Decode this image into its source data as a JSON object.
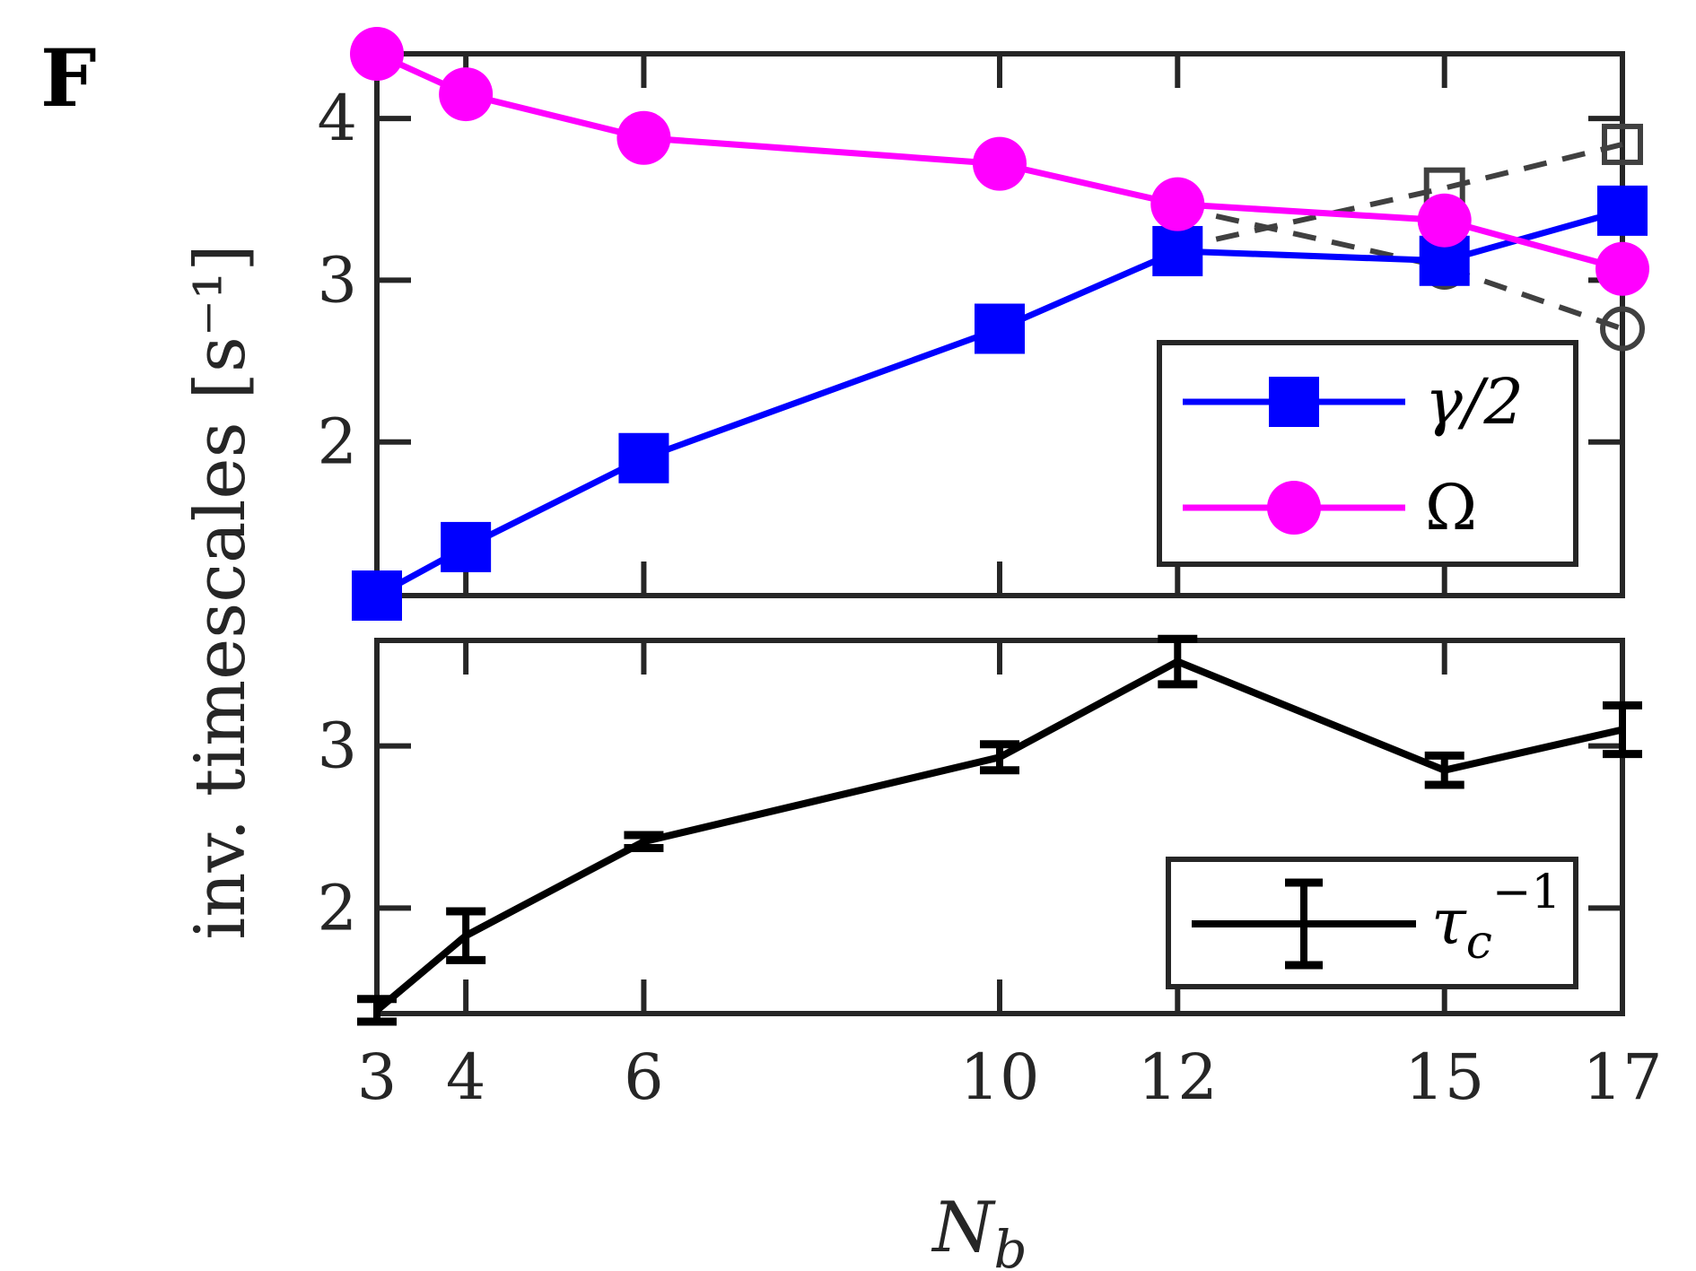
{
  "panel_label": "F",
  "ylabel": "inv.  timescales [s⁻¹]",
  "xlabel": {
    "main": "N",
    "sub": "b"
  },
  "colors": {
    "gamma": "#0000ff",
    "omega": "#ff00ff",
    "tau": "#000000",
    "alt": "#404040",
    "axis": "#262626"
  },
  "chart_data": [
    {
      "type": "line",
      "title": "",
      "xlabel": "N_b",
      "ylabel": "inv. timescales [s^-1]",
      "x": [
        3,
        4,
        6,
        10,
        12,
        15,
        17
      ],
      "xlim": [
        3,
        17
      ],
      "xticks": [
        3,
        4,
        6,
        10,
        12,
        15,
        17
      ],
      "ylim": [
        1.05,
        4.4
      ],
      "yticks": [
        2,
        3,
        4
      ],
      "grid": false,
      "legend_position": "right",
      "series": [
        {
          "name": "γ/2",
          "marker": "filled-square",
          "color": "#0000ff",
          "x": [
            3,
            4,
            6,
            10,
            12,
            15,
            17
          ],
          "values": [
            1.05,
            1.35,
            1.9,
            2.7,
            3.18,
            3.12,
            3.43
          ]
        },
        {
          "name": "Ω",
          "marker": "filled-circle",
          "color": "#ff00ff",
          "x": [
            3,
            4,
            6,
            10,
            12,
            15,
            17
          ],
          "values": [
            4.4,
            4.15,
            3.88,
            3.72,
            3.47,
            3.37,
            3.07
          ]
        },
        {
          "name": "",
          "marker": "open-square",
          "style": "dashed",
          "color": "#404040",
          "x": [
            12,
            15,
            17
          ],
          "values": [
            3.2,
            3.57,
            3.84
          ]
        },
        {
          "name": "",
          "marker": "open-circle",
          "style": "dashed",
          "color": "#404040",
          "x": [
            12,
            15,
            17
          ],
          "values": [
            3.45,
            3.08,
            2.7
          ]
        }
      ],
      "legend": [
        {
          "label_main": "γ/2",
          "series": 0
        },
        {
          "label_main": "Ω",
          "series": 1
        }
      ]
    },
    {
      "type": "line",
      "title": "",
      "xlabel": "N_b",
      "ylabel": "inv. timescales [s^-1]",
      "x": [
        3,
        4,
        6,
        10,
        12,
        15,
        17
      ],
      "xlim": [
        3,
        17
      ],
      "xticks": [
        3,
        4,
        6,
        10,
        12,
        15,
        17
      ],
      "ylim": [
        1.35,
        3.65
      ],
      "yticks": [
        2,
        3
      ],
      "grid": false,
      "legend_position": "bottom-right",
      "series": [
        {
          "name": "τ_c^-1",
          "marker": "errorbar",
          "color": "#000000",
          "x": [
            3,
            4,
            6,
            10,
            12,
            15,
            17
          ],
          "values": [
            1.37,
            1.83,
            2.41,
            2.93,
            3.52,
            2.85,
            3.1
          ],
          "errors": [
            0.07,
            0.15,
            0.04,
            0.08,
            0.14,
            0.09,
            0.15
          ]
        }
      ],
      "legend": [
        {
          "label_main": "τ",
          "label_sub": "c",
          "label_sup": "−1",
          "series": 0
        }
      ]
    }
  ]
}
